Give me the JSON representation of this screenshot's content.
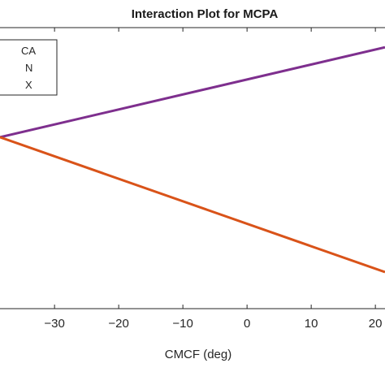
{
  "chart_data": {
    "type": "line",
    "title": "Interaction Plot for MCPA",
    "xlabel": "CMCF (deg)",
    "ylabel": "",
    "xlim": [
      -38.5,
      21.5
    ],
    "ylim": [
      0,
      1
    ],
    "xticks": [
      -30,
      -20,
      -10,
      0,
      10,
      20
    ],
    "xtick_labels": [
      "−30",
      "−20",
      "−10",
      "0",
      "10",
      "20"
    ],
    "grid": false,
    "legend": {
      "position": "top-left",
      "entries": [
        "CA",
        "N",
        "X"
      ]
    },
    "series": [
      {
        "name": "CA",
        "color": "#7E2F8E",
        "x": [
          -38.5,
          21.5
        ],
        "y": [
          0.61,
          0.93
        ],
        "visible_in_plot": true
      },
      {
        "name": "X",
        "color": "#D95319",
        "x": [
          -38.5,
          21.5
        ],
        "y": [
          0.61,
          0.13
        ],
        "visible_in_plot": true
      }
    ]
  }
}
